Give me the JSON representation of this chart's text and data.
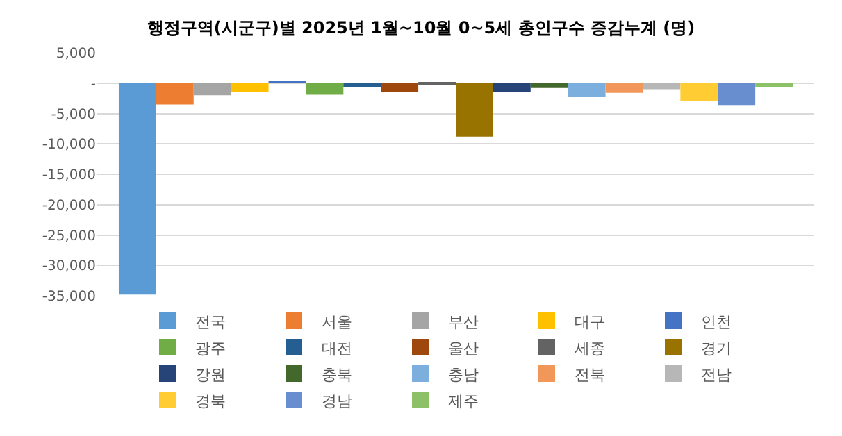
{
  "chart_data": {
    "type": "bar",
    "title": "행정구역(시군구)별 2025년 1월~10월 0~5세 총인구수 증감누계 (명)",
    "categories": [
      null
    ],
    "series": [
      {
        "name": "전국",
        "color": "#5b9bd5",
        "values": [
          -34800
        ]
      },
      {
        "name": "서울",
        "color": "#ed7d31",
        "values": [
          -3500
        ]
      },
      {
        "name": "부산",
        "color": "#a5a5a5",
        "values": [
          -2000
        ]
      },
      {
        "name": "대구",
        "color": "#ffc000",
        "values": [
          -1500
        ]
      },
      {
        "name": "인천",
        "color": "#4472c4",
        "values": [
          300
        ]
      },
      {
        "name": "광주",
        "color": "#70ad47",
        "values": [
          -1900
        ]
      },
      {
        "name": "대전",
        "color": "#255e91",
        "values": [
          -700
        ]
      },
      {
        "name": "울산",
        "color": "#9e480e",
        "values": [
          -1400
        ]
      },
      {
        "name": "세종",
        "color": "#636363",
        "values": [
          -300
        ]
      },
      {
        "name": "경기",
        "color": "#997300",
        "values": [
          -8800
        ]
      },
      {
        "name": "강원",
        "color": "#264478",
        "values": [
          -1500
        ]
      },
      {
        "name": "충북",
        "color": "#43682b",
        "values": [
          -800
        ]
      },
      {
        "name": "충남",
        "color": "#7cafdd",
        "values": [
          -2200
        ]
      },
      {
        "name": "전북",
        "color": "#f1975a",
        "values": [
          -1600
        ]
      },
      {
        "name": "전남",
        "color": "#b7b7b7",
        "values": [
          -1000
        ]
      },
      {
        "name": "경북",
        "color": "#ffcd33",
        "values": [
          -2900
        ]
      },
      {
        "name": "경남",
        "color": "#698ed0",
        "values": [
          -3600
        ]
      },
      {
        "name": "제주",
        "color": "#8cc168",
        "values": [
          -600
        ]
      }
    ],
    "ylim": [
      -35000,
      5000
    ],
    "yticks": [
      {
        "value": 5000,
        "label": "5,000"
      },
      {
        "value": 0,
        "label": "-"
      },
      {
        "value": -5000,
        "label": "-5,000"
      },
      {
        "value": -10000,
        "label": "-10,000"
      },
      {
        "value": -15000,
        "label": "-15,000"
      },
      {
        "value": -20000,
        "label": "-20,000"
      },
      {
        "value": -25000,
        "label": "-25,000"
      },
      {
        "value": -30000,
        "label": "-30,000"
      },
      {
        "value": -35000,
        "label": "-35,000"
      }
    ],
    "grid": "y",
    "legend": "bottom",
    "tick_labels": "y"
  }
}
